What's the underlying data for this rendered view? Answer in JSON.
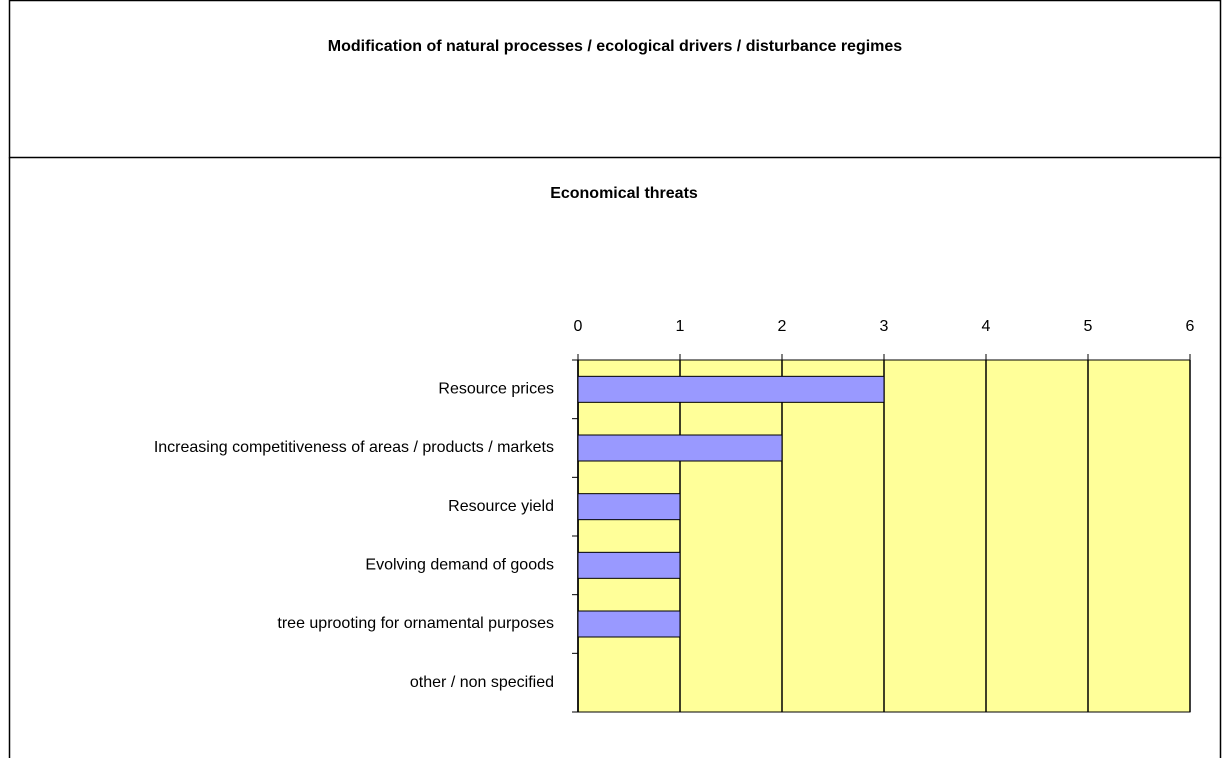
{
  "chart_data": [
    {
      "type": "bar",
      "title": "Modification of natural processes / ecological drivers / disturbance regimes"
    },
    {
      "type": "hbar",
      "title": "Economical threats",
      "categories": [
        "Resource prices",
        "Increasing competitiveness of areas / products / markets",
        "Resource yield",
        "Evolving demand of goods",
        "tree uprooting for ornamental purposes",
        "other / non specified"
      ],
      "values": [
        3,
        2,
        1,
        1,
        1,
        0
      ],
      "color": "#9999ff",
      "plot_background": "#ffff99",
      "xlim": [
        0,
        6
      ],
      "xticks": [
        0,
        1,
        2,
        3,
        4,
        5,
        6
      ],
      "grid": true
    }
  ]
}
